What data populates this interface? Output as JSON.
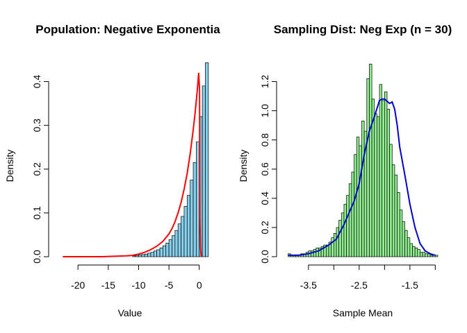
{
  "chart_data": [
    {
      "type": "bar",
      "title": "Population: Negative Exponentia",
      "xlabel": "Value",
      "ylabel": "Density",
      "xlim": [
        -23,
        0.6
      ],
      "ylim": [
        0,
        0.45
      ],
      "xticks": [
        -20,
        -15,
        -10,
        -5,
        0
      ],
      "xtick_labels": [
        "-20",
        "-15",
        "-10",
        "-5",
        "0"
      ],
      "yticks": [
        0.0,
        0.1,
        0.2,
        0.3,
        0.4
      ],
      "ytick_labels": [
        "0.0",
        "0.1",
        "0.2",
        "0.3",
        "0.4"
      ],
      "bar_color": "#87CEEB",
      "line_color": "#FF0000",
      "bins": {
        "start": -11,
        "width": 0.5,
        "values": [
          0.002,
          0.003,
          0.004,
          0.005,
          0.006,
          0.008,
          0.01,
          0.013,
          0.016,
          0.02,
          0.025,
          0.031,
          0.039,
          0.048,
          0.06,
          0.075,
          0.092,
          0.115,
          0.14,
          0.175,
          0.215,
          0.262,
          0.32,
          0.39,
          0.443
        ]
      },
      "curve": {
        "x": [
          -22.5,
          -20,
          -18,
          -16,
          -14,
          -12,
          -11,
          -10,
          -9,
          -8,
          -7,
          -6,
          -5,
          -4.5,
          -4,
          -3.5,
          -3,
          -2.5,
          -2,
          -1.5,
          -1,
          -0.75,
          -0.5,
          -0.3,
          -0.1,
          0.05,
          0.1,
          0.2,
          0.3,
          0.4
        ],
        "y": [
          0.0,
          0.0,
          0.0,
          0.0,
          0.001,
          0.002,
          0.003,
          0.006,
          0.01,
          0.016,
          0.024,
          0.035,
          0.052,
          0.064,
          0.08,
          0.1,
          0.124,
          0.154,
          0.19,
          0.235,
          0.29,
          0.32,
          0.355,
          0.385,
          0.42,
          0.38,
          0.09,
          0.02,
          0.004,
          0.0
        ]
      }
    },
    {
      "type": "bar",
      "title": "Sampling Dist: Neg Exp (n = 30)",
      "xlabel": "Sample Mean",
      "ylabel": "Density",
      "xlim": [
        -3.95,
        -0.95
      ],
      "ylim": [
        0,
        1.35
      ],
      "xticks": [
        -3.5,
        -2.5,
        -1.5
      ],
      "xtick_labels": [
        "-3.5",
        "-2.5",
        "-1.5"
      ],
      "minor_xticks": [
        -3.0,
        -2.0,
        -1.0
      ],
      "yticks": [
        0.0,
        0.2,
        0.4,
        0.6,
        0.8,
        1.0,
        1.2
      ],
      "ytick_labels": [
        "0.0",
        "0.2",
        "0.4",
        "0.6",
        "0.8",
        "1.0",
        "1.2"
      ],
      "bar_color": "#90EE90",
      "line_color": "#0000CD",
      "bins": {
        "start": -3.9,
        "width": 0.05,
        "values": [
          0.02,
          0.01,
          0.01,
          0.01,
          0.01,
          0.02,
          0.02,
          0.03,
          0.04,
          0.04,
          0.05,
          0.06,
          0.06,
          0.07,
          0.08,
          0.08,
          0.1,
          0.13,
          0.16,
          0.2,
          0.25,
          0.3,
          0.36,
          0.42,
          0.5,
          0.58,
          0.7,
          0.82,
          0.76,
          0.93,
          0.86,
          1.22,
          1.32,
          1.08,
          0.98,
          0.96,
          1.18,
          1.07,
          1.13,
          1.01,
          0.77,
          0.63,
          0.56,
          0.44,
          0.32,
          0.24,
          0.18,
          0.13,
          0.09,
          0.07,
          0.06,
          0.05,
          0.03,
          0.03,
          0.02,
          0.02,
          0.01,
          0.01,
          0.01
        ]
      },
      "curve": {
        "x": [
          -3.9,
          -3.7,
          -3.5,
          -3.3,
          -3.1,
          -2.95,
          -2.8,
          -2.7,
          -2.6,
          -2.5,
          -2.4,
          -2.3,
          -2.2,
          -2.1,
          -2.05,
          -2.0,
          -1.9,
          -1.85,
          -1.8,
          -1.75,
          -1.7,
          -1.6,
          -1.5,
          -1.4,
          -1.3,
          -1.2,
          -1.1,
          -1.0
        ],
        "y": [
          0.01,
          0.01,
          0.02,
          0.04,
          0.08,
          0.12,
          0.22,
          0.3,
          0.38,
          0.5,
          0.7,
          0.86,
          0.96,
          1.07,
          1.08,
          1.08,
          1.05,
          1.06,
          1.01,
          0.9,
          0.75,
          0.56,
          0.36,
          0.2,
          0.09,
          0.04,
          0.02,
          0.01
        ]
      }
    }
  ]
}
